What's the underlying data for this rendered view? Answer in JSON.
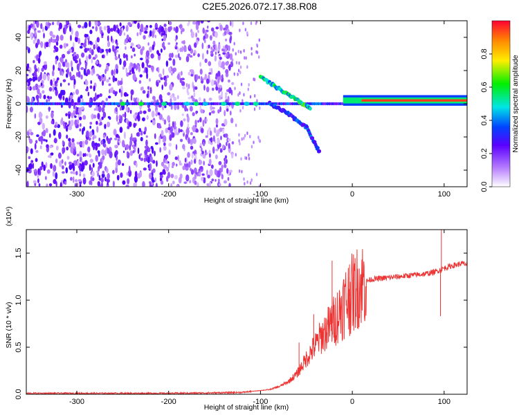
{
  "title": "C2E5.2026.072.17.38.R08",
  "chart_data": [
    {
      "type": "heatmap",
      "xlabel": "Height of straight line (km)",
      "ylabel": "Frequency (Hz)",
      "xlim": [
        -355,
        125
      ],
      "ylim": [
        -50,
        50
      ],
      "xticks": [
        -300,
        -200,
        -100,
        0,
        100
      ],
      "xtick_labels": [
        "-300",
        "-200",
        "-100",
        "0",
        "100"
      ],
      "yticks": [
        -40,
        -20,
        0,
        20,
        40
      ],
      "ytick_labels": [
        "-40",
        "-20",
        "0",
        "20",
        "40"
      ],
      "colorbar": {
        "label": "Normalized spectral amplitude",
        "range": [
          0,
          1
        ],
        "ticks": [
          0,
          0.2,
          0.4,
          0.6,
          0.8
        ],
        "tick_labels": [
          "0.0",
          "0.2",
          "0.4",
          "0.6",
          "0.8"
        ]
      },
      "features": [
        {
          "name": "noise-region",
          "x_range": [
            -355,
            -130
          ],
          "y_range": [
            -50,
            50
          ],
          "amplitude": 0.2
        },
        {
          "name": "carrier-line",
          "x_range": [
            -355,
            125
          ],
          "y": 0,
          "amplitude": 0.3
        },
        {
          "name": "strong-carrier",
          "x_range": [
            -10,
            125
          ],
          "y": 2,
          "amplitude": 0.95
        },
        {
          "name": "rising-branch",
          "points": [
            [
              -100,
              16
            ],
            [
              -80,
              9
            ],
            [
              -60,
              2
            ],
            [
              -45,
              -3
            ]
          ],
          "amplitude": 0.5
        },
        {
          "name": "falling-branch",
          "points": [
            [
              -90,
              0
            ],
            [
              -70,
              -6
            ],
            [
              -50,
              -14
            ],
            [
              -35,
              -30
            ]
          ],
          "amplitude": 0.3
        }
      ]
    },
    {
      "type": "line",
      "xlabel": "Height of straight line (km)",
      "ylabel": "SNR (10 * v/v)",
      "exponent_label": "(x10⁴)",
      "color": "#ee3333",
      "xlim": [
        -355,
        125
      ],
      "ylim": [
        0,
        1.75
      ],
      "xticks": [
        -300,
        -200,
        -100,
        0,
        100
      ],
      "xtick_labels": [
        "-300",
        "-200",
        "-100",
        "0",
        "100"
      ],
      "yticks": [
        0,
        0.5,
        1.0,
        1.5
      ],
      "ytick_labels": [
        "0.0",
        "0.5",
        "1.0",
        "1.5"
      ],
      "series": [
        {
          "name": "SNR",
          "x": [
            -355,
            -300,
            -250,
            -200,
            -150,
            -120,
            -100,
            -90,
            -80,
            -70,
            -60,
            -55,
            -50,
            -45,
            -40,
            -35,
            -30,
            -25,
            -20,
            -15,
            -10,
            -5,
            0,
            5,
            10,
            15,
            20,
            30,
            40,
            50,
            60,
            70,
            80,
            90,
            95,
            100,
            110,
            120,
            125
          ],
          "y": [
            0.01,
            0.01,
            0.01,
            0.01,
            0.015,
            0.02,
            0.04,
            0.05,
            0.08,
            0.13,
            0.22,
            0.3,
            0.38,
            0.45,
            0.52,
            0.6,
            0.66,
            0.72,
            0.78,
            0.86,
            0.96,
            1.02,
            1.07,
            1.13,
            1.18,
            1.2,
            1.22,
            1.23,
            1.24,
            1.25,
            1.26,
            1.27,
            1.28,
            1.3,
            1.32,
            1.34,
            1.37,
            1.39,
            1.38
          ]
        }
      ],
      "spikes": [
        {
          "x": -58,
          "y": 0.55
        },
        {
          "x": -42,
          "y": 0.85
        },
        {
          "x": -22,
          "y": 1.42
        },
        {
          "x": -3,
          "y": 1.38
        },
        {
          "x": 97,
          "y": 1.75
        },
        {
          "x": 96,
          "y": 0.83
        }
      ]
    }
  ]
}
